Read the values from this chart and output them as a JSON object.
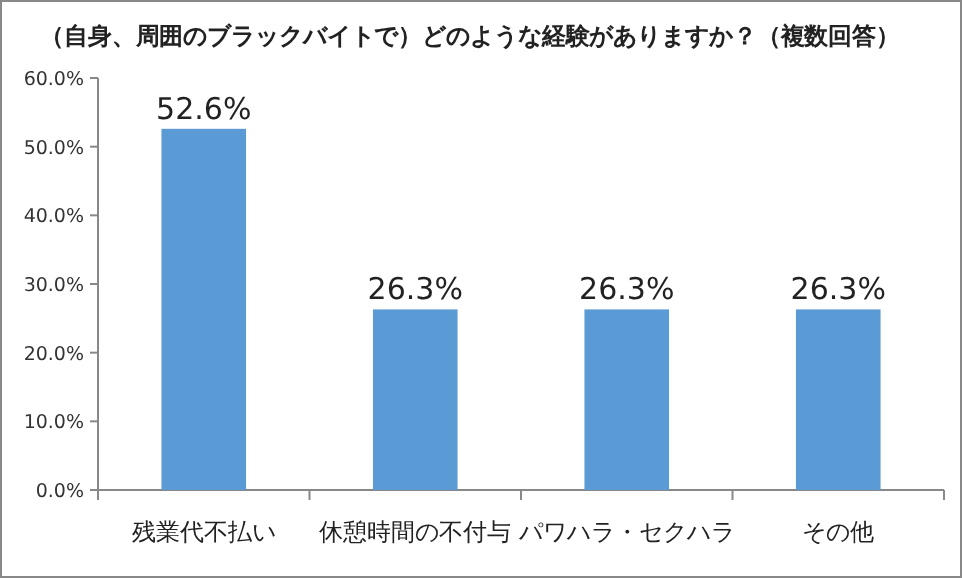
{
  "chart_data": {
    "type": "bar",
    "title": "（自身、周囲のブラックバイトで）どのような経験がありますか？（複数回答）",
    "categories": [
      "残業代不払い",
      "休憩時間の不付与",
      "パワハラ・セクハラ",
      "その他"
    ],
    "values": [
      52.6,
      26.3,
      26.3,
      26.3
    ],
    "color": "#5b9bd5",
    "value_labels": [
      "52.6%",
      "26.3%",
      "26.3%",
      "26.3%"
    ],
    "ylim": [
      0,
      60
    ],
    "yticks": [
      {
        "value": 0,
        "label": "0.0%"
      },
      {
        "value": 10,
        "label": "10.0%"
      },
      {
        "value": 20,
        "label": "20.0%"
      },
      {
        "value": 30,
        "label": "30.0%"
      },
      {
        "value": 40,
        "label": "40.0%"
      },
      {
        "value": 50,
        "label": "50.0%"
      },
      {
        "value": 60,
        "label": "60.0%"
      }
    ]
  }
}
